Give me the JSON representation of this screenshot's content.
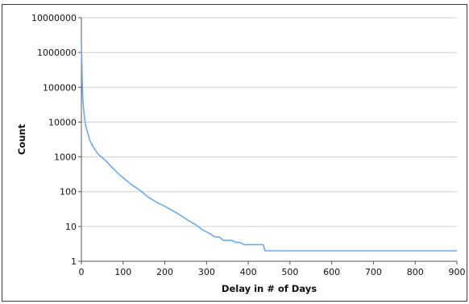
{
  "chart_data": {
    "type": "line",
    "title": "",
    "xlabel": "Delay in # of Days",
    "ylabel": "Count",
    "xlim": [
      0,
      900
    ],
    "ylim": [
      1,
      10000000
    ],
    "yscale": "log",
    "grid": "horizontal",
    "line_color": "#6aaaf0",
    "x_ticks": [
      "0",
      "100",
      "200",
      "300",
      "400",
      "500",
      "600",
      "700",
      "800",
      "900"
    ],
    "y_ticks": [
      "1",
      "10",
      "100",
      "1000",
      "10000",
      "100000",
      "1000000",
      "10000000"
    ],
    "series": [
      {
        "name": "",
        "x": [
          0,
          1,
          2,
          3,
          5,
          8,
          10,
          15,
          20,
          30,
          40,
          50,
          60,
          70,
          80,
          90,
          100,
          120,
          140,
          160,
          180,
          200,
          220,
          240,
          260,
          270,
          280,
          290,
          300,
          310,
          320,
          330,
          340,
          350,
          360,
          370,
          380,
          390,
          400,
          410,
          420,
          430,
          436,
          440,
          450,
          500,
          600,
          700,
          800,
          900
        ],
        "y": [
          2000000,
          600000,
          150000,
          60000,
          25000,
          12000,
          8000,
          5000,
          3000,
          1800,
          1200,
          950,
          750,
          550,
          420,
          320,
          250,
          160,
          110,
          70,
          50,
          38,
          28,
          20,
          14,
          12,
          10,
          8,
          7,
          6,
          5,
          5,
          4,
          4,
          4,
          3.5,
          3.5,
          3,
          3,
          3,
          3,
          3,
          3,
          2,
          2,
          2,
          2,
          2,
          2,
          2
        ]
      }
    ]
  }
}
